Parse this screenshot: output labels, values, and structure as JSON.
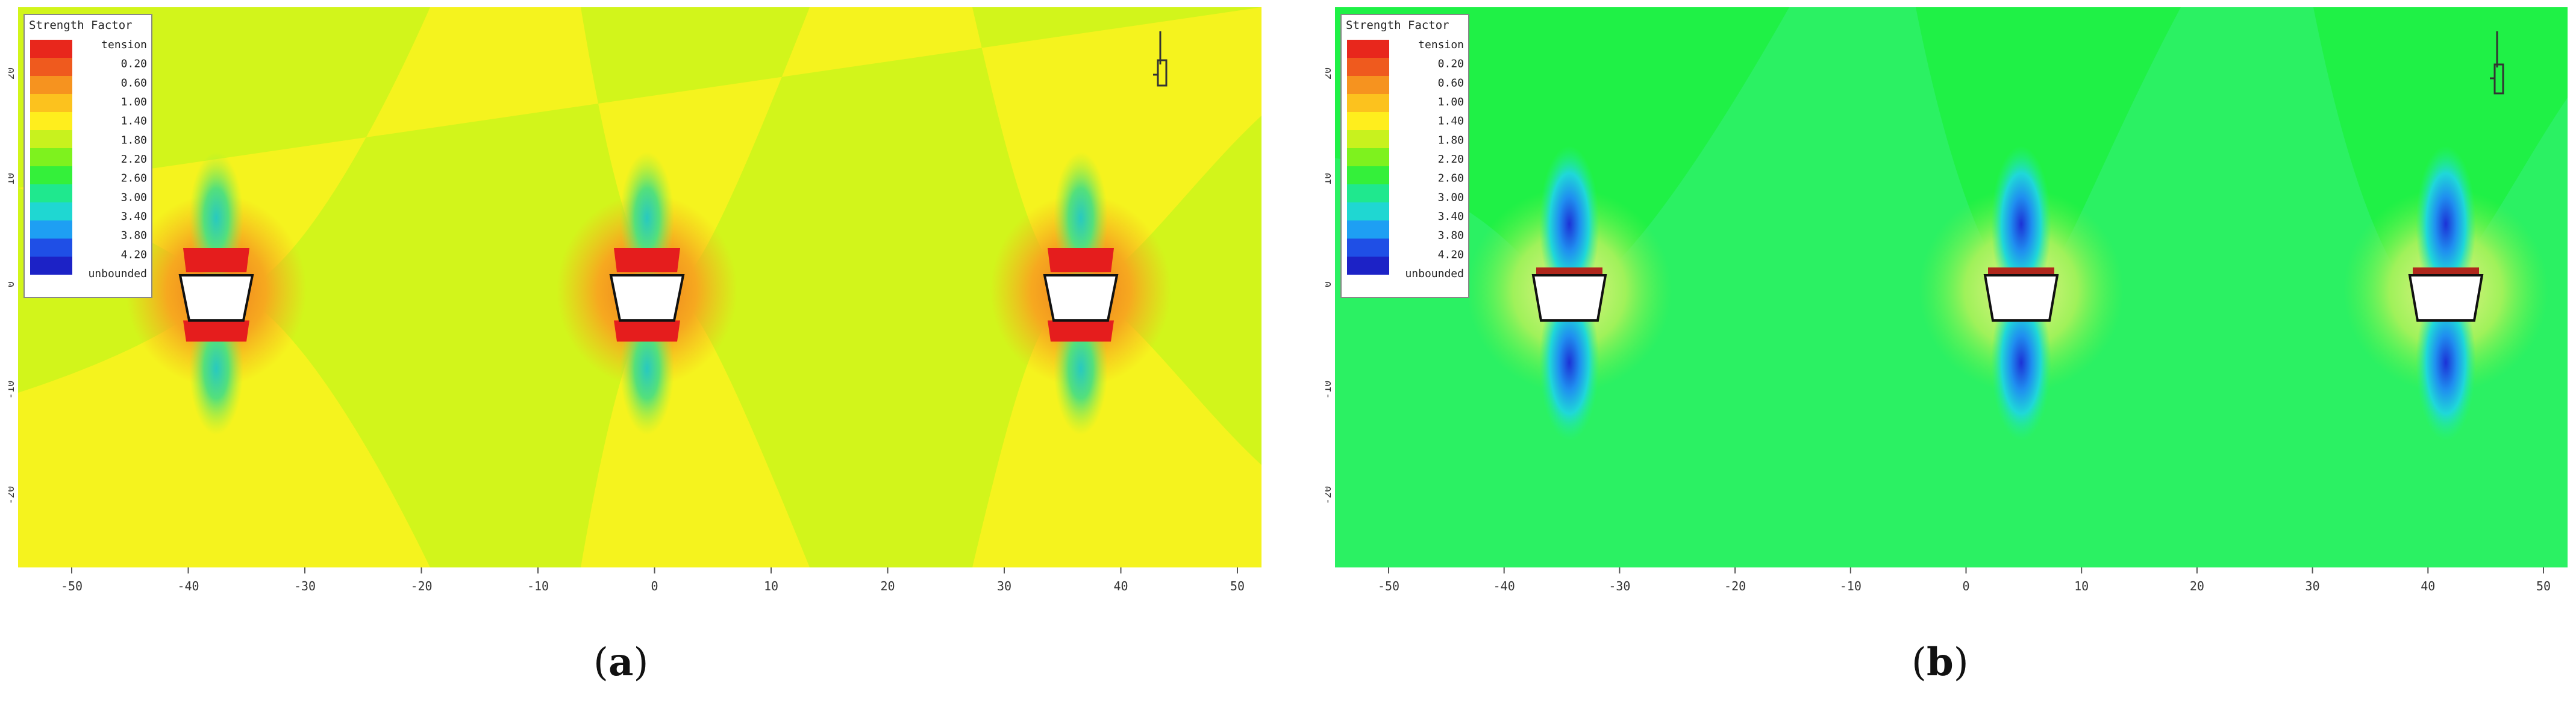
{
  "legend": {
    "title": "Strength Factor",
    "top_label": "tension",
    "bottom_label": "unbounded",
    "values": [
      "0.20",
      "0.60",
      "1.00",
      "1.40",
      "1.80",
      "2.20",
      "2.60",
      "3.00",
      "3.40",
      "3.80",
      "4.20"
    ],
    "colors": [
      "#e8271c",
      "#ef5a1e",
      "#f6931f",
      "#fcc21e",
      "#ffee1d",
      "#c8f21e",
      "#7ef21e",
      "#34f03a",
      "#1fe88e",
      "#1fd7d2",
      "#1e9ff3",
      "#1f4fe6",
      "#1c22c6"
    ]
  },
  "axes": {
    "x_ticks": [
      "-50",
      "-40",
      "-30",
      "-20",
      "-10",
      "0",
      "10",
      "20",
      "30",
      "40",
      "50"
    ],
    "y_ticks": [
      "20",
      "10",
      "0",
      "-10",
      "-20"
    ]
  },
  "panels": [
    {
      "caption_open": "(",
      "caption_letter": "a",
      "caption_close": ")",
      "background": "#d2f51b",
      "lobe_color": "#f6b320",
      "band_color": "#fbf21f"
    },
    {
      "caption_open": "(",
      "caption_letter": "b",
      "caption_close": ")",
      "background": "#1ff146",
      "lobe_color": "#f1f05a",
      "band_color": "#37f58e"
    }
  ]
}
